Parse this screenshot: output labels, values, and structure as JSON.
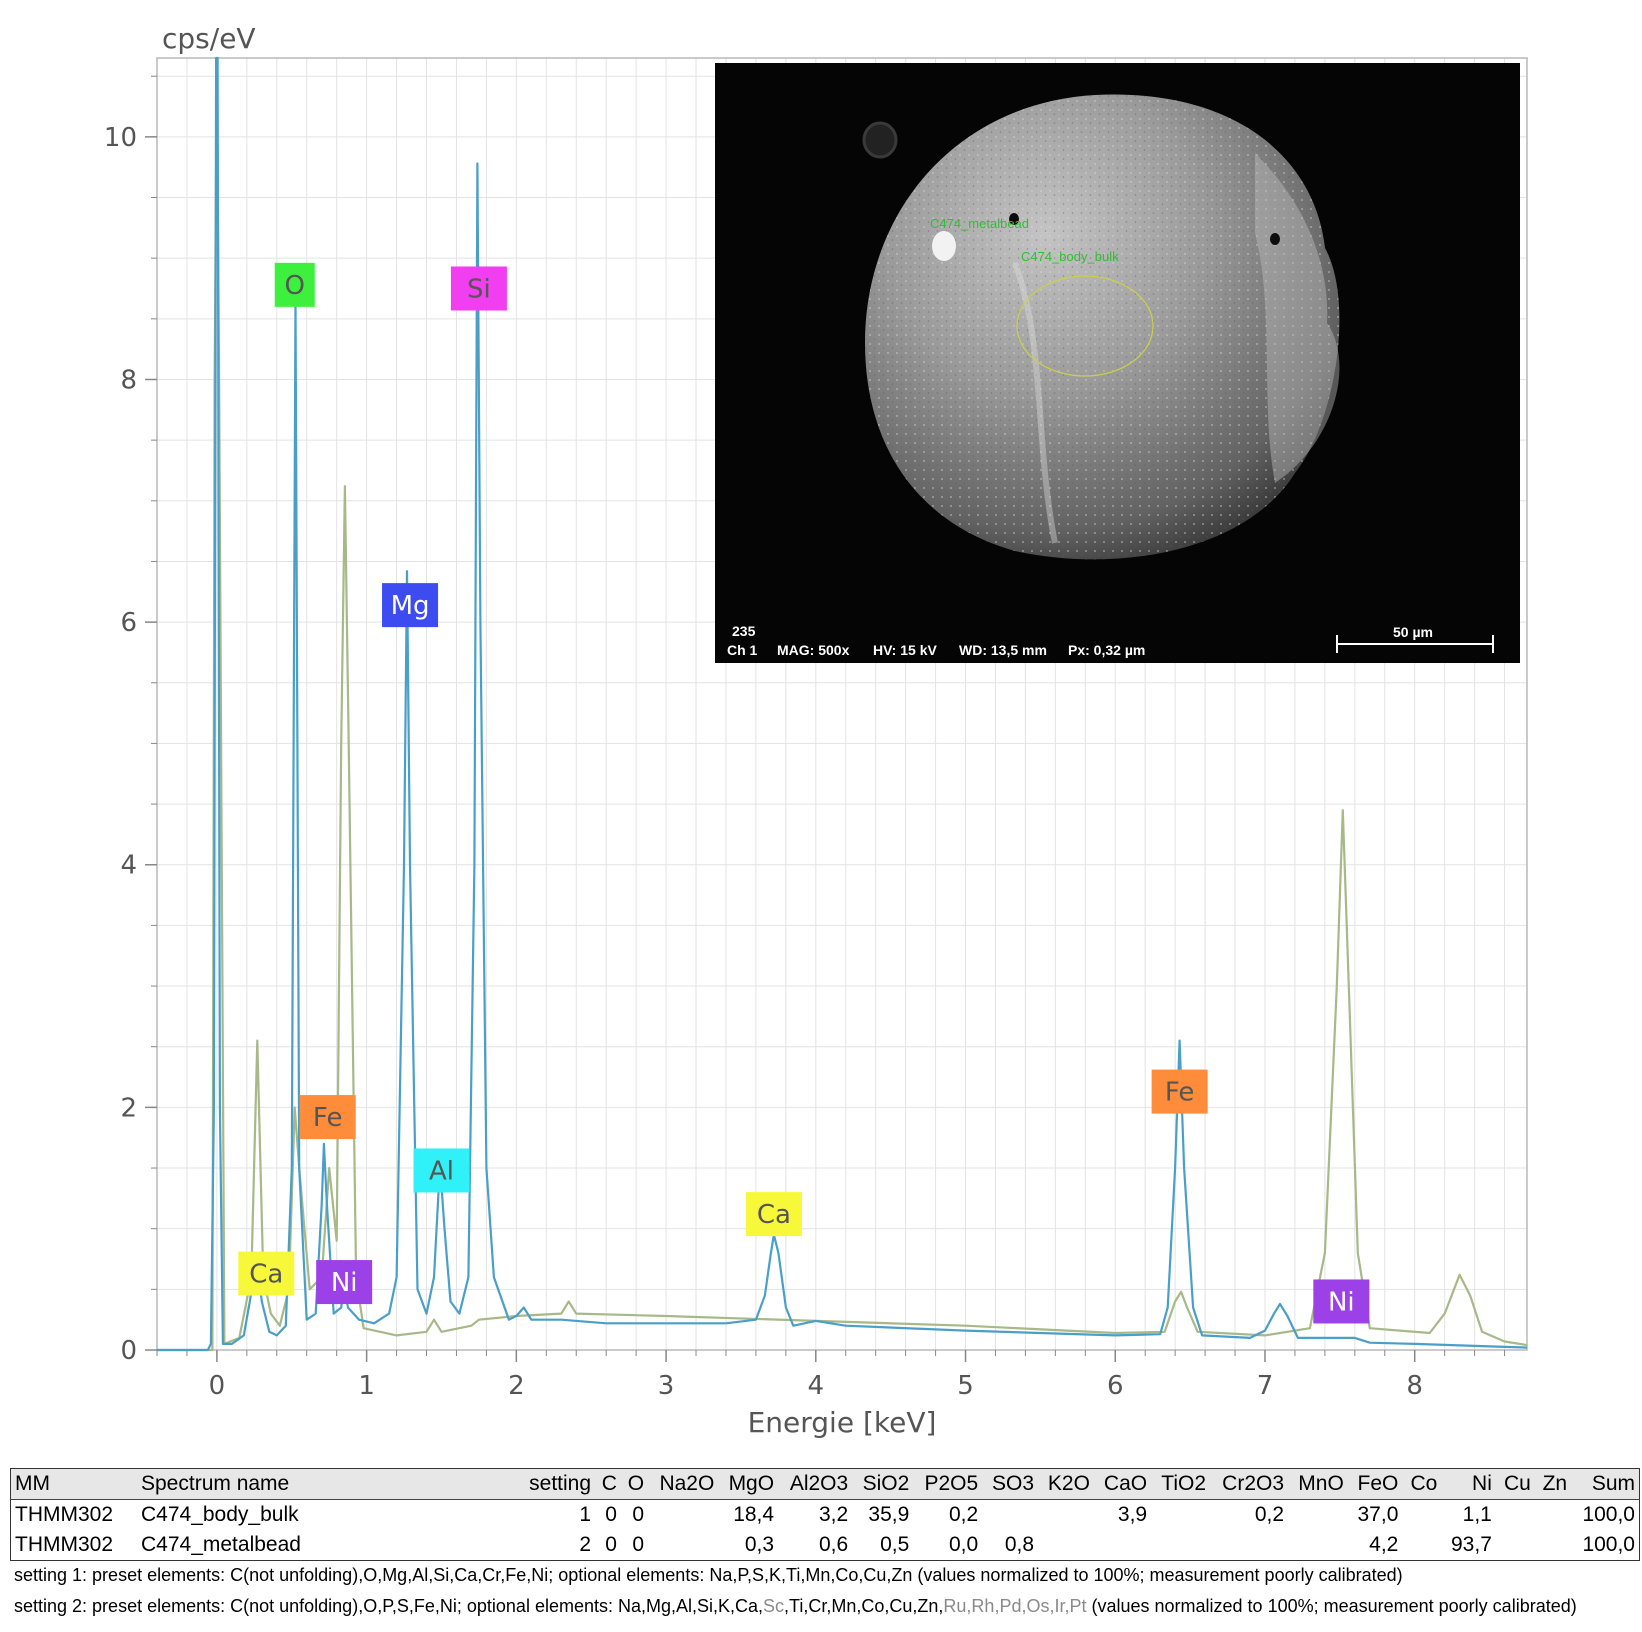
{
  "chart_data": {
    "type": "line",
    "ylabel": "cps/eV",
    "xlabel": "Energie [keV]",
    "xlim": [
      -0.4,
      8.75
    ],
    "ylim": [
      0,
      10.65
    ],
    "xticks": [
      0,
      1,
      2,
      3,
      4,
      5,
      6,
      7,
      8
    ],
    "yticks": [
      0,
      2,
      4,
      6,
      8,
      10
    ],
    "grid": true,
    "series": [
      {
        "color": "#4a9fc9",
        "points": [
          [
            -0.4,
            0
          ],
          [
            -0.06,
            0
          ],
          [
            -0.04,
            0.05
          ],
          [
            -0.02,
            2
          ],
          [
            -0.005,
            10.65
          ],
          [
            0.005,
            10.65
          ],
          [
            0.02,
            2
          ],
          [
            0.04,
            0.05
          ],
          [
            0.1,
            0.05
          ],
          [
            0.18,
            0.12
          ],
          [
            0.22,
            0.4
          ],
          [
            0.265,
            0.75
          ],
          [
            0.3,
            0.4
          ],
          [
            0.35,
            0.15
          ],
          [
            0.4,
            0.12
          ],
          [
            0.46,
            0.2
          ],
          [
            0.5,
            1.5
          ],
          [
            0.525,
            8.65
          ],
          [
            0.55,
            1.5
          ],
          [
            0.6,
            0.25
          ],
          [
            0.66,
            0.3
          ],
          [
            0.7,
            1.2
          ],
          [
            0.715,
            1.7
          ],
          [
            0.735,
            1.2
          ],
          [
            0.78,
            0.3
          ],
          [
            0.83,
            0.35
          ],
          [
            0.85,
            0.55
          ],
          [
            0.875,
            0.35
          ],
          [
            0.95,
            0.25
          ],
          [
            1.05,
            0.22
          ],
          [
            1.15,
            0.3
          ],
          [
            1.2,
            0.6
          ],
          [
            1.25,
            4
          ],
          [
            1.27,
            6.42
          ],
          [
            1.29,
            4
          ],
          [
            1.34,
            0.5
          ],
          [
            1.4,
            0.3
          ],
          [
            1.45,
            0.6
          ],
          [
            1.48,
            1.3
          ],
          [
            1.5,
            1.35
          ],
          [
            1.52,
            1.0
          ],
          [
            1.56,
            0.4
          ],
          [
            1.62,
            0.3
          ],
          [
            1.68,
            0.6
          ],
          [
            1.72,
            4
          ],
          [
            1.74,
            9.78
          ],
          [
            1.76,
            6
          ],
          [
            1.8,
            1.5
          ],
          [
            1.85,
            0.6
          ],
          [
            1.95,
            0.25
          ],
          [
            2.0,
            0.28
          ],
          [
            2.05,
            0.35
          ],
          [
            2.1,
            0.25
          ],
          [
            2.3,
            0.25
          ],
          [
            2.6,
            0.22
          ],
          [
            3.0,
            0.22
          ],
          [
            3.4,
            0.22
          ],
          [
            3.6,
            0.25
          ],
          [
            3.66,
            0.45
          ],
          [
            3.7,
            0.8
          ],
          [
            3.72,
            0.95
          ],
          [
            3.75,
            0.8
          ],
          [
            3.8,
            0.35
          ],
          [
            3.85,
            0.2
          ],
          [
            4.0,
            0.24
          ],
          [
            4.2,
            0.2
          ],
          [
            5.0,
            0.16
          ],
          [
            6.0,
            0.12
          ],
          [
            6.3,
            0.13
          ],
          [
            6.35,
            0.35
          ],
          [
            6.4,
            1.5
          ],
          [
            6.43,
            2.55
          ],
          [
            6.46,
            1.5
          ],
          [
            6.52,
            0.35
          ],
          [
            6.58,
            0.12
          ],
          [
            6.9,
            0.1
          ],
          [
            7.0,
            0.16
          ],
          [
            7.06,
            0.3
          ],
          [
            7.1,
            0.38
          ],
          [
            7.15,
            0.28
          ],
          [
            7.22,
            0.1
          ],
          [
            7.5,
            0.1
          ],
          [
            7.6,
            0.1
          ],
          [
            7.7,
            0.06
          ],
          [
            8.0,
            0.05
          ],
          [
            8.5,
            0.03
          ],
          [
            8.75,
            0.02
          ]
        ]
      },
      {
        "color": "#a8b888",
        "points": [
          [
            -0.4,
            0
          ],
          [
            -0.03,
            0
          ],
          [
            -0.015,
            8
          ],
          [
            0,
            10.65
          ],
          [
            0.015,
            8
          ],
          [
            0.05,
            0.05
          ],
          [
            0.15,
            0.1
          ],
          [
            0.23,
            0.6
          ],
          [
            0.27,
            2.55
          ],
          [
            0.31,
            0.6
          ],
          [
            0.36,
            0.3
          ],
          [
            0.42,
            0.2
          ],
          [
            0.48,
            0.5
          ],
          [
            0.52,
            2.0
          ],
          [
            0.55,
            1.5
          ],
          [
            0.62,
            0.5
          ],
          [
            0.7,
            0.6
          ],
          [
            0.75,
            1.5
          ],
          [
            0.8,
            0.9
          ],
          [
            0.83,
            5
          ],
          [
            0.855,
            7.12
          ],
          [
            0.88,
            5
          ],
          [
            0.93,
            0.6
          ],
          [
            0.98,
            0.18
          ],
          [
            1.2,
            0.12
          ],
          [
            1.4,
            0.15
          ],
          [
            1.45,
            0.25
          ],
          [
            1.5,
            0.15
          ],
          [
            1.7,
            0.2
          ],
          [
            1.75,
            0.25
          ],
          [
            2.0,
            0.28
          ],
          [
            2.3,
            0.3
          ],
          [
            2.35,
            0.4
          ],
          [
            2.4,
            0.3
          ],
          [
            3.0,
            0.28
          ],
          [
            4.0,
            0.24
          ],
          [
            5.0,
            0.2
          ],
          [
            6.0,
            0.14
          ],
          [
            6.33,
            0.15
          ],
          [
            6.4,
            0.4
          ],
          [
            6.44,
            0.48
          ],
          [
            6.48,
            0.35
          ],
          [
            6.55,
            0.15
          ],
          [
            7.0,
            0.12
          ],
          [
            7.3,
            0.18
          ],
          [
            7.4,
            0.8
          ],
          [
            7.48,
            3
          ],
          [
            7.52,
            4.45
          ],
          [
            7.56,
            3
          ],
          [
            7.62,
            0.8
          ],
          [
            7.7,
            0.18
          ],
          [
            8.1,
            0.14
          ],
          [
            8.2,
            0.3
          ],
          [
            8.3,
            0.62
          ],
          [
            8.37,
            0.45
          ],
          [
            8.45,
            0.15
          ],
          [
            8.6,
            0.07
          ],
          [
            8.75,
            0.04
          ]
        ]
      }
    ],
    "peak_labels": [
      {
        "text": "O",
        "x": 0.52,
        "y": 8.78,
        "bg": "#3ef03e"
      },
      {
        "text": "Si",
        "x": 1.75,
        "y": 8.75,
        "bg": "#f03ef0"
      },
      {
        "text": "Mg",
        "x": 1.29,
        "y": 6.14,
        "bg": "#3c4cf0"
      },
      {
        "text": "Fe",
        "x": 0.74,
        "y": 1.92,
        "bg": "#ff8c3a"
      },
      {
        "text": "Al",
        "x": 1.5,
        "y": 1.48,
        "bg": "#30f0f8"
      },
      {
        "text": "Ca",
        "x": 0.33,
        "y": 0.63,
        "bg": "#f8f83a"
      },
      {
        "text": "Ni",
        "x": 0.85,
        "y": 0.56,
        "bg": "#9c40e8"
      },
      {
        "text": "Ca",
        "x": 3.72,
        "y": 1.12,
        "bg": "#f8f83a"
      },
      {
        "text": "Fe",
        "x": 6.43,
        "y": 2.13,
        "bg": "#ff8c3a"
      },
      {
        "text": "Ni",
        "x": 7.51,
        "y": 0.4,
        "bg": "#9c40e8"
      }
    ]
  },
  "sem_image": {
    "roi_labels": [
      "C474_metalbead",
      "C474_body_bulk"
    ],
    "info_line1": "235",
    "info_line2": [
      "Ch 1",
      "MAG: 500x",
      "HV: 15 kV",
      "WD: 13,5 mm",
      "Px: 0,32 µm"
    ],
    "scale_bar": "50 µm"
  },
  "table": {
    "headers": [
      "MM",
      "Spectrum name",
      "setting",
      "C",
      "O",
      "Na2O",
      "MgO",
      "Al2O3",
      "SiO2",
      "P2O5",
      "SO3",
      "K2O",
      "CaO",
      "TiO2",
      "Cr2O3",
      "MnO",
      "FeO",
      "Co",
      "Ni",
      "Cu",
      "Zn",
      "Sum"
    ],
    "rows": [
      [
        "THMM302",
        "C474_body_bulk",
        "1",
        "0",
        "0",
        "",
        "18,4",
        "3,2",
        "35,9",
        "0,2",
        "",
        "",
        "3,9",
        "",
        "0,2",
        "",
        "37,0",
        "",
        "1,1",
        "",
        "",
        "100,0"
      ],
      [
        "THMM302",
        "C474_metalbead",
        "2",
        "0",
        "0",
        "",
        "0,3",
        "0,6",
        "0,5",
        "0,0",
        "0,8",
        "",
        "",
        "",
        "",
        "",
        "4,2",
        "",
        "93,7",
        "",
        "",
        "100,0"
      ]
    ]
  },
  "notes": {
    "setting1": "setting 1: preset elements: C(not unfolding),O,Mg,Al,Si,Ca,Cr,Fe,Ni; optional elements: Na,P,S,K,Ti,Mn,Co,Cu,Zn (values normalized to 100%; measurement poorly calibrated)",
    "setting2_a": "setting 2: preset elements: C(not unfolding),O,P,S,Fe,Ni; optional elements: Na,Mg,Al,Si,K,Ca,",
    "setting2_b": "Sc",
    "setting2_c": ",Ti,Cr,Mn,Co,Cu,Zn,",
    "setting2_d": "Ru,Rh,Pd,Os,Ir,Pt",
    "setting2_e": "  (values normalized to 100%; measurement poorly calibrated)"
  }
}
